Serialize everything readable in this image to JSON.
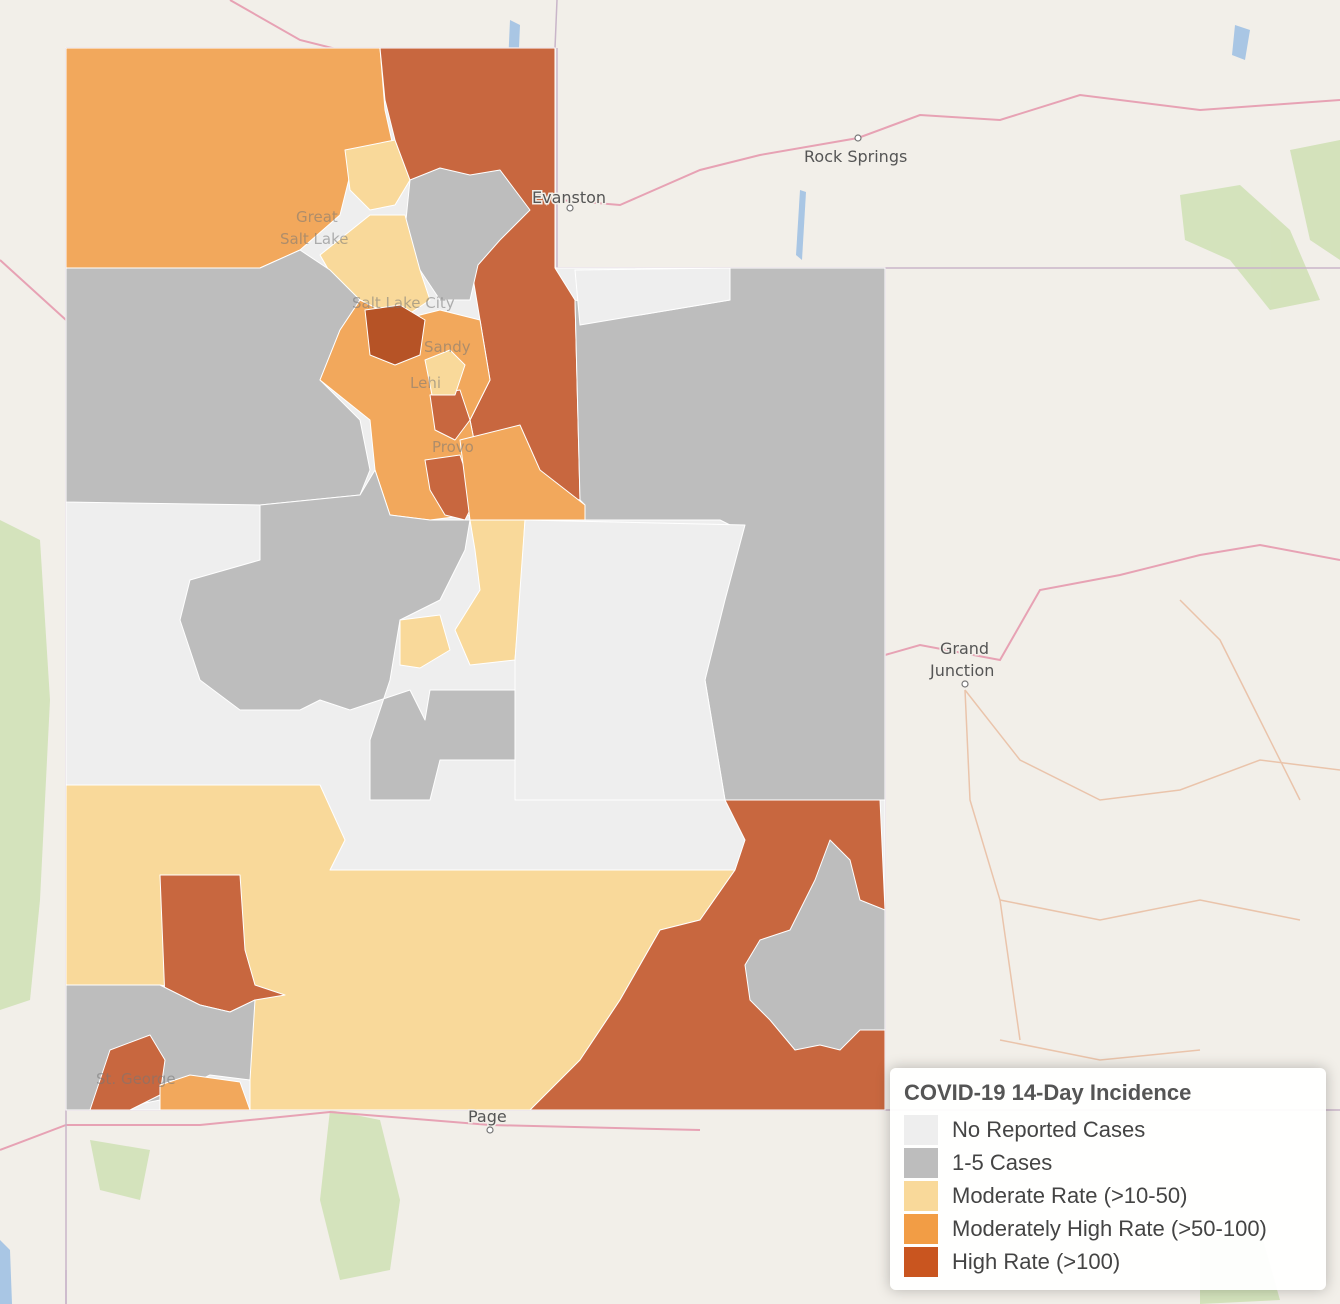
{
  "map": {
    "places": [
      {
        "name": "Rock Springs"
      },
      {
        "name": "Evanston"
      },
      {
        "name": "Grand"
      },
      {
        "name": "Junction"
      },
      {
        "name": "Page"
      },
      {
        "name": "Salt Lake City"
      },
      {
        "name": "Provo"
      },
      {
        "name": "Lehi"
      },
      {
        "name": "Sandy"
      },
      {
        "name": "St. George"
      },
      {
        "name": "Great"
      },
      {
        "name": "Salt Lake"
      }
    ]
  },
  "legend": {
    "title": "COVID-19 14-Day Incidence",
    "items": [
      {
        "label": "No Reported Cases",
        "color": "#eeeeee"
      },
      {
        "label": "1-5 Cases",
        "color": "#bdbdbd"
      },
      {
        "label": "Moderate Rate (>10-50)",
        "color": "#f9d99a"
      },
      {
        "label": "Moderately High Rate (>50-100)",
        "color": "#f29d45"
      },
      {
        "label": "High Rate (>100)",
        "color": "#c9551f"
      }
    ]
  }
}
